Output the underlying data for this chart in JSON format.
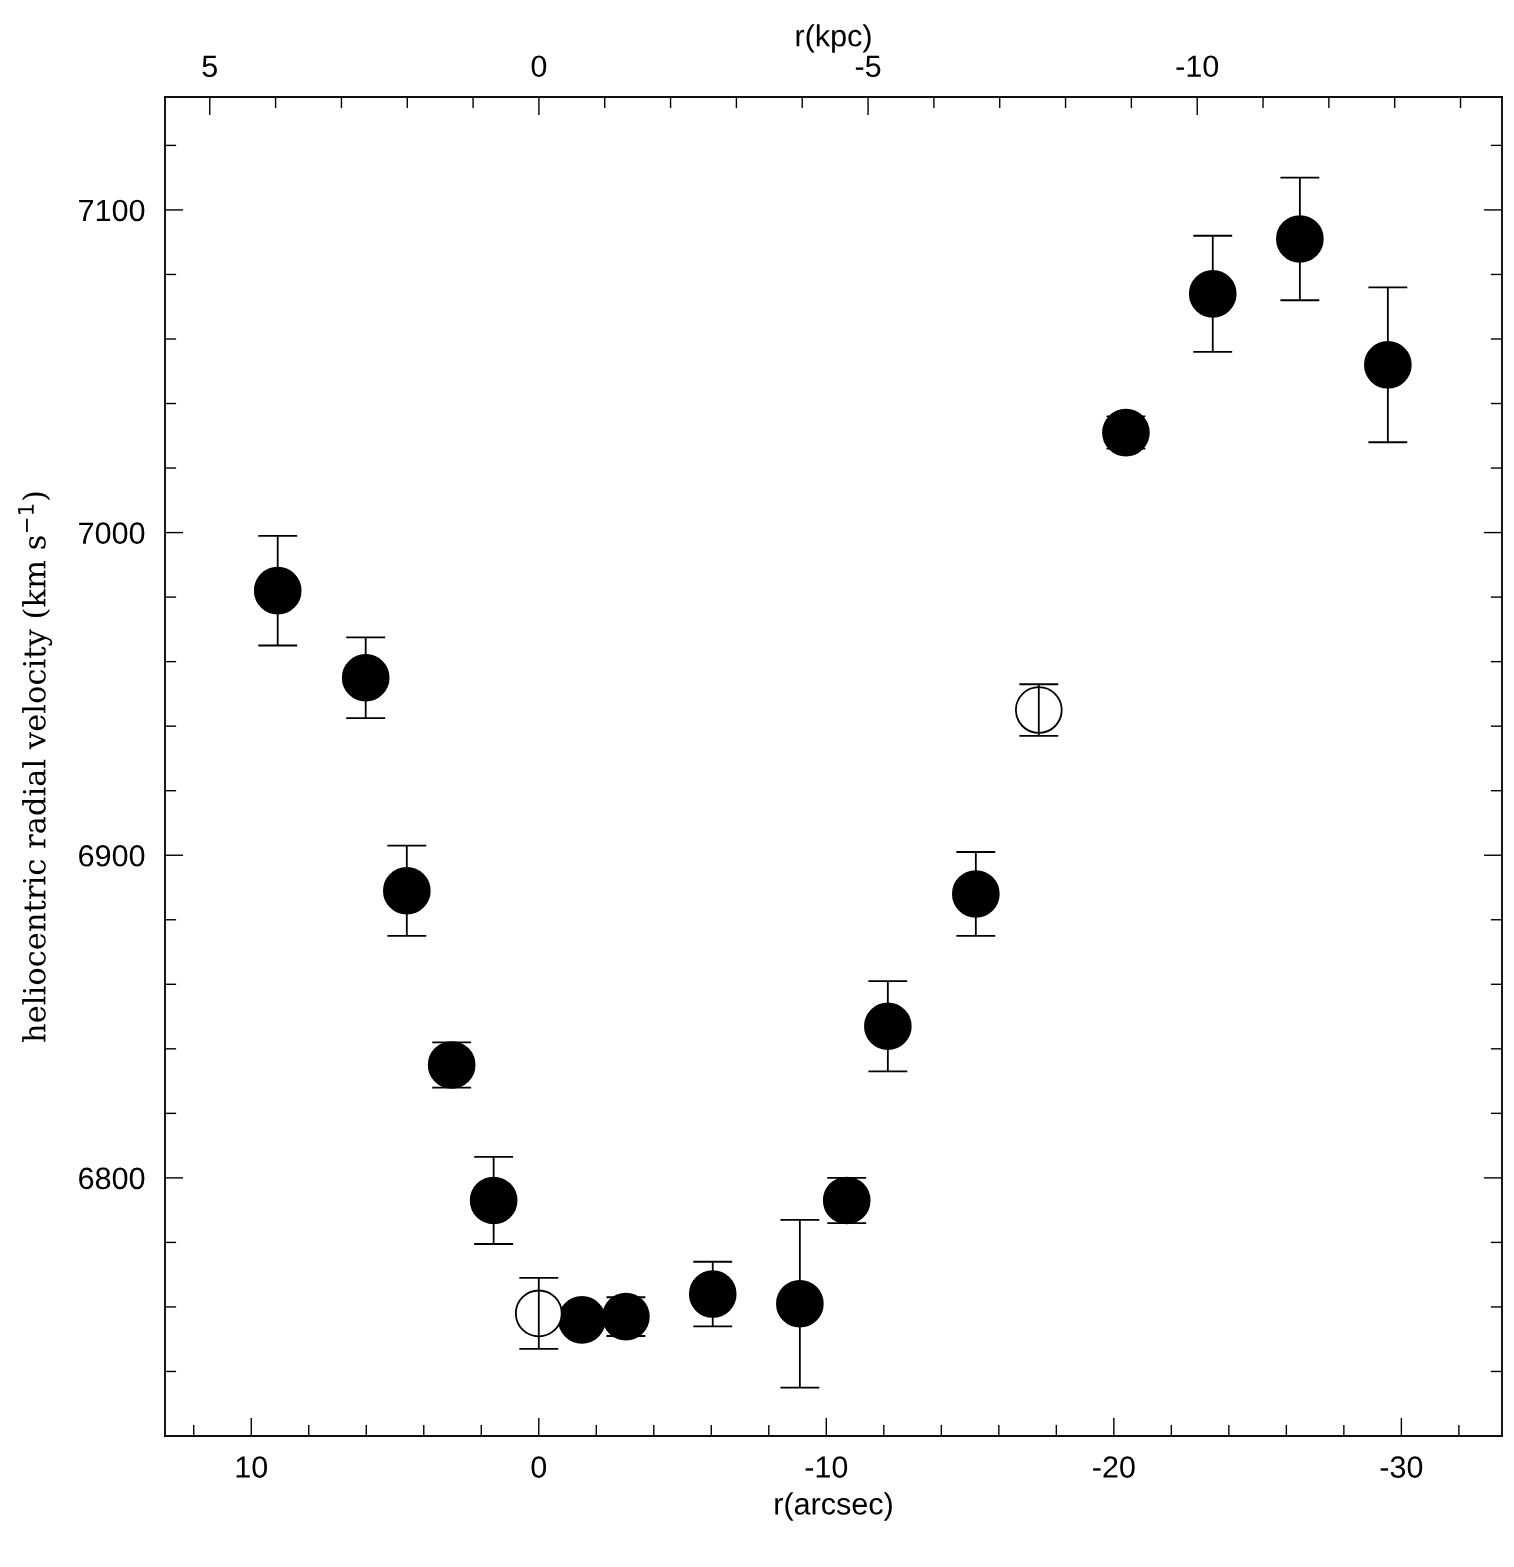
{
  "chart_data": {
    "type": "scatter",
    "xlabel": "r(arcsec)",
    "x2label": "r(kpc)",
    "ylabel": "heliocentric radial velocity (km s$^{−1}$)",
    "xlim": [
      13.0,
      -33.5
    ],
    "x2lim": [
      5.68,
      -14.63
    ],
    "ylim": [
      6720,
      7135
    ],
    "xticks": [
      {
        "value": 12,
        "label": null
      },
      10,
      {
        "value": 8,
        "label": null
      },
      {
        "value": 6,
        "label": null
      },
      {
        "value": 4,
        "label": null
      },
      {
        "value": 2,
        "label": null
      },
      0,
      {
        "value": -2,
        "label": null
      },
      {
        "value": -4,
        "label": null
      },
      {
        "value": -6,
        "label": null
      },
      {
        "value": -8,
        "label": null
      },
      -10,
      {
        "value": -12,
        "label": null
      },
      {
        "value": -14,
        "label": null
      },
      {
        "value": -16,
        "label": null
      },
      {
        "value": -18,
        "label": null
      },
      -20,
      {
        "value": -22,
        "label": null
      },
      {
        "value": -24,
        "label": null
      },
      {
        "value": -26,
        "label": null
      },
      {
        "value": -28,
        "label": null
      },
      -30,
      {
        "value": -32,
        "label": null
      }
    ],
    "x2ticks": [
      5,
      {
        "value": 4,
        "label": null
      },
      {
        "value": 3,
        "label": null
      },
      {
        "value": 2,
        "label": null
      },
      {
        "value": 1,
        "label": null
      },
      0,
      {
        "value": -1,
        "label": null
      },
      {
        "value": -2,
        "label": null
      },
      {
        "value": -3,
        "label": null
      },
      {
        "value": -4,
        "label": null
      },
      -5,
      {
        "value": -6,
        "label": null
      },
      {
        "value": -7,
        "label": null
      },
      {
        "value": -8,
        "label": null
      },
      {
        "value": -9,
        "label": null
      },
      -10,
      {
        "value": -11,
        "label": null
      },
      {
        "value": -12,
        "label": null
      },
      {
        "value": -13,
        "label": null
      },
      {
        "value": -14,
        "label": null
      }
    ],
    "yticks": [
      {
        "value": 6740,
        "label": null
      },
      {
        "value": 6760,
        "label": null
      },
      {
        "value": 6780,
        "label": null
      },
      6800,
      {
        "value": 6820,
        "label": null
      },
      {
        "value": 6840,
        "label": null
      },
      {
        "value": 6860,
        "label": null
      },
      {
        "value": 6880,
        "label": null
      },
      6900,
      {
        "value": 6920,
        "label": null
      },
      {
        "value": 6940,
        "label": null
      },
      {
        "value": 6960,
        "label": null
      },
      {
        "value": 6980,
        "label": null
      },
      7000,
      {
        "value": 7020,
        "label": null
      },
      {
        "value": 7040,
        "label": null
      },
      {
        "value": 7060,
        "label": null
      },
      {
        "value": 7080,
        "label": null
      },
      7100,
      {
        "value": 7120,
        "label": null
      }
    ],
    "marker": "circle",
    "grid": false,
    "legend": false,
    "series": [
      {
        "color": "#000000",
        "x": [
          9.08,
          6.02,
          4.59,
          3.03,
          1.57,
          -1.5,
          -3.03,
          -6.05,
          -9.08,
          -10.71,
          -12.14,
          -15.2,
          -20.42,
          -23.44,
          -26.47,
          -29.53
        ],
        "values": [
          6982,
          6955,
          6889,
          6835,
          6793,
          6756,
          6757,
          6764,
          6761,
          6793,
          6847,
          6888,
          7031,
          7074,
          7091,
          7052
        ],
        "errors": [
          17,
          12.5,
          14,
          7,
          13.5,
          2,
          6,
          10,
          26,
          7,
          14,
          13,
          5,
          18,
          19,
          24
        ]
      },
      {
        "color": "#ffffff",
        "x": [
          0,
          -17.39
        ],
        "values": [
          6758,
          6945
        ],
        "errors": [
          11,
          8
        ]
      }
    ]
  }
}
